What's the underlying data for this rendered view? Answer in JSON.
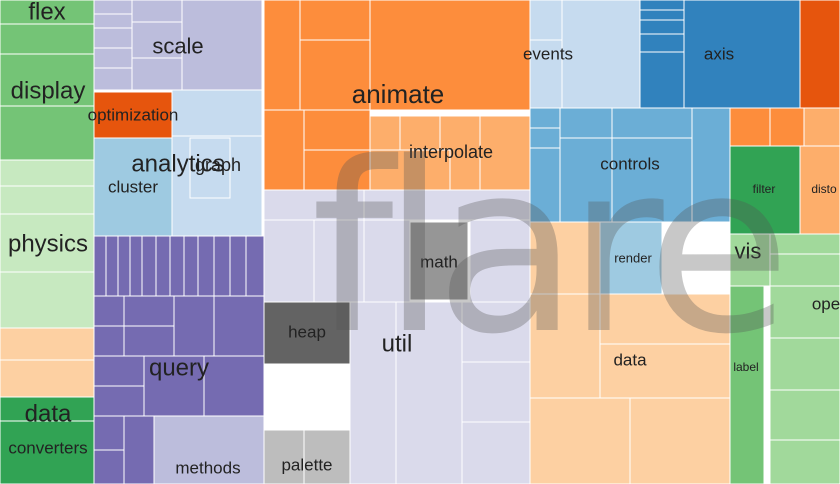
{
  "chart_data": {
    "type": "treemap",
    "title": "flare",
    "groups": [
      {
        "name": "flex",
        "color": "#74c476",
        "label": "flex"
      },
      {
        "name": "display",
        "color": "#74c476",
        "label": "display"
      },
      {
        "name": "physics",
        "color": "#c7e9c0",
        "label": "physics"
      },
      {
        "name": "data",
        "color": "#31a354",
        "label": "data"
      },
      {
        "name": "converters",
        "color": "#31a354",
        "label": "converters"
      },
      {
        "name": "scale",
        "color": "#bcbddc",
        "label": "scale"
      },
      {
        "name": "optimization",
        "color": "#e6550d",
        "label": "optimization"
      },
      {
        "name": "analytics",
        "color": "#c6dbef",
        "label": "analytics"
      },
      {
        "name": "graph",
        "color": "#c6dbef",
        "label": "graph"
      },
      {
        "name": "cluster",
        "color": "#9ecae1",
        "label": "cluster"
      },
      {
        "name": "query",
        "color": "#756bb1",
        "label": "query"
      },
      {
        "name": "methods",
        "color": "#bcbddc",
        "label": "methods"
      },
      {
        "name": "animate",
        "color": "#fd8d3c",
        "label": "animate"
      },
      {
        "name": "interpolate",
        "color": "#fdae6b",
        "label": "interpolate"
      },
      {
        "name": "util",
        "color": "#dadaeb",
        "label": "util"
      },
      {
        "name": "math",
        "color": "#969696",
        "label": "math"
      },
      {
        "name": "heap",
        "color": "#636363",
        "label": "heap"
      },
      {
        "name": "palette",
        "color": "#bdbdbd",
        "label": "palette"
      },
      {
        "name": "events",
        "color": "#c6dbef",
        "label": "events"
      },
      {
        "name": "axis",
        "color": "#3182bd",
        "label": "axis"
      },
      {
        "name": "controls",
        "color": "#6baed6",
        "label": "controls"
      },
      {
        "name": "render",
        "color": "#9ecae1",
        "label": "render"
      },
      {
        "name": "data",
        "color": "#fdd0a2",
        "label": "data"
      },
      {
        "name": "filter",
        "color": "#31a354",
        "label": "filter"
      },
      {
        "name": "distortion",
        "color": "#fdae6b",
        "label": "disto"
      },
      {
        "name": "vis",
        "color": "#a1d99b",
        "label": "vis"
      },
      {
        "name": "label",
        "color": "#74c476",
        "label": "label"
      },
      {
        "name": "operator",
        "color": "#a1d99b",
        "label": "ope"
      }
    ]
  }
}
